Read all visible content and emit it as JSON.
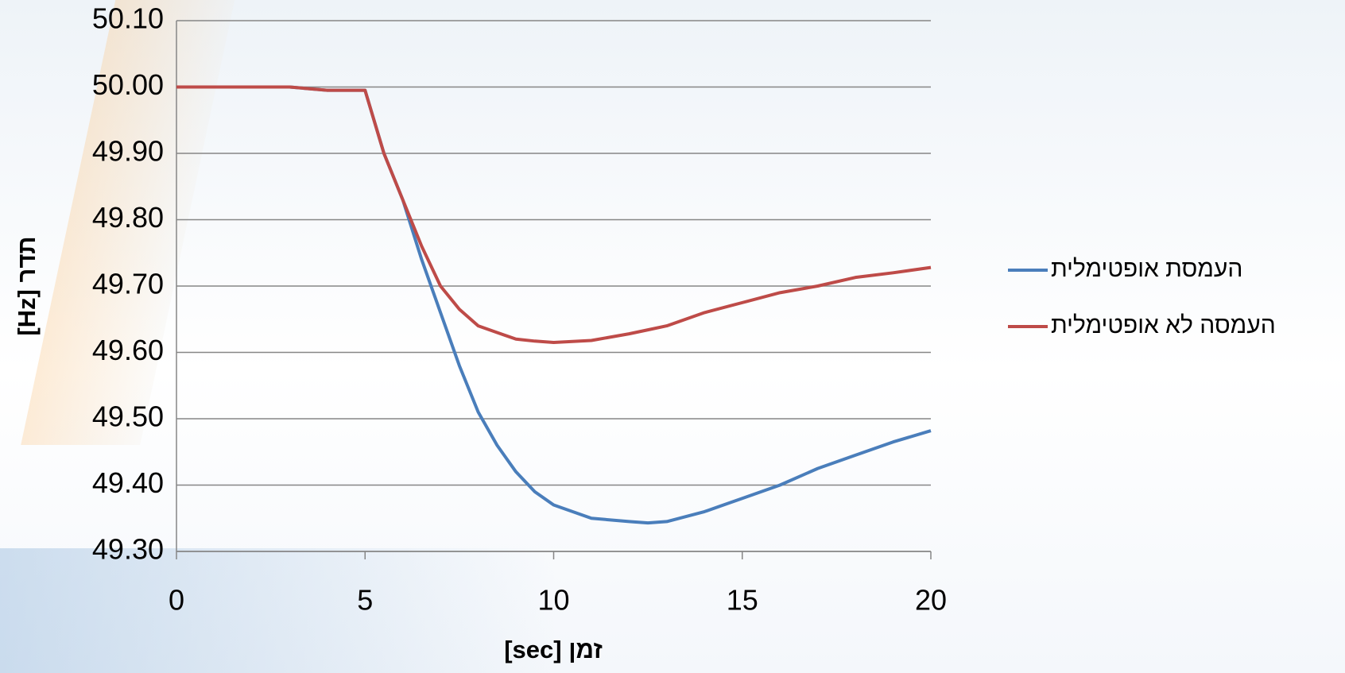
{
  "chart_data": {
    "type": "line",
    "y_label": "תדר [Hz]",
    "x_label": "זמן [sec]",
    "x": [
      0,
      1,
      2,
      3,
      4,
      5,
      5.5,
      6,
      6.5,
      7,
      7.5,
      8,
      8.5,
      9,
      9.5,
      10,
      11,
      12,
      12.5,
      13,
      14,
      15,
      16,
      17,
      18,
      19,
      20
    ],
    "series": [
      {
        "name": "העמסת אופטימלית",
        "color": "#4a7ebb",
        "values": [
          50.0,
          50.0,
          50.0,
          50.0,
          49.995,
          49.995,
          49.9,
          49.83,
          49.74,
          49.66,
          49.58,
          49.51,
          49.46,
          49.42,
          49.39,
          49.37,
          49.35,
          49.345,
          49.343,
          49.345,
          49.36,
          49.38,
          49.4,
          49.425,
          49.445,
          49.465,
          49.482
        ]
      },
      {
        "name": "העמסה לא אופטימלית",
        "color": "#be4b48",
        "values": [
          50.0,
          50.0,
          50.0,
          50.0,
          49.995,
          49.995,
          49.9,
          49.83,
          49.76,
          49.7,
          49.665,
          49.64,
          49.63,
          49.62,
          49.617,
          49.615,
          49.618,
          49.628,
          49.634,
          49.64,
          49.66,
          49.675,
          49.69,
          49.7,
          49.713,
          49.72,
          49.728
        ]
      }
    ],
    "xlim": [
      0,
      20
    ],
    "xticks": [
      0,
      5,
      10,
      15,
      20
    ],
    "ylim": [
      49.3,
      50.1
    ],
    "yticks": [
      {
        "value": 49.3,
        "label": "49.30"
      },
      {
        "value": 49.4,
        "label": "49.40"
      },
      {
        "value": 49.5,
        "label": "49.50"
      },
      {
        "value": 49.6,
        "label": "49.60"
      },
      {
        "value": 49.7,
        "label": "49.70"
      },
      {
        "value": 49.8,
        "label": "49.80"
      },
      {
        "value": 49.9,
        "label": "49.90"
      },
      {
        "value": 50.0,
        "label": "50.00"
      },
      {
        "value": 50.1,
        "label": "50.10"
      }
    ],
    "grid": true,
    "legend": "right"
  }
}
